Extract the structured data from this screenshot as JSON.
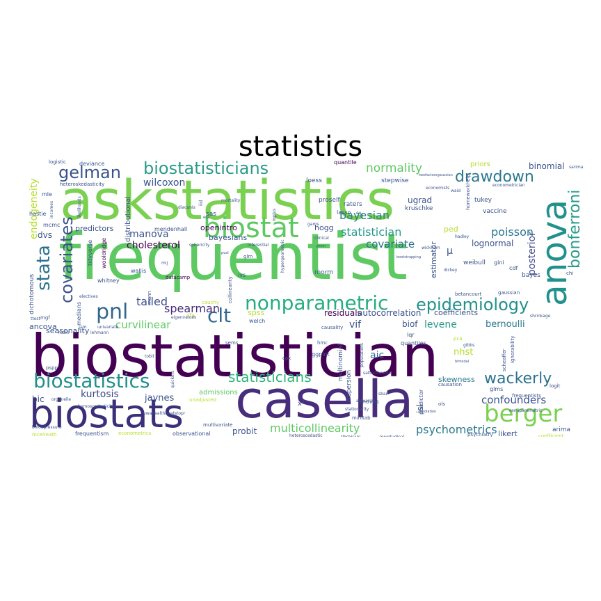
{
  "title": "statistics",
  "words": {
    "biostatistician": "biostatistician",
    "frequentist": "frequentist",
    "askstatistics": "askstatistics",
    "casella": "casella",
    "biostats": "biostats",
    "anova": "anova",
    "biostat": "biostat",
    "biostatistics": "biostatistics",
    "nonparametric": "nonparametric",
    "biostatisticians": "biostatisticians",
    "berger": "berger",
    "epidemiology": "epidemiology",
    "gelman": "gelman",
    "pnl": "pnl",
    "clt": "clt",
    "covariates": "covariates",
    "stata": "stata",
    "bonferroni": "bonferroni",
    "drawdown": "drawdown",
    "wackerly": "wackerly",
    "statisticians": "statisticians",
    "normality": "normality",
    "multicollinearity": "multicollinearity",
    "statistician": "statistician",
    "bayesian": "bayesian",
    "poisson": "poisson",
    "covariate": "covariate",
    "confounders": "confounders",
    "psychometrics": "psychometrics",
    "spearman": "spearman",
    "tailed": "tailed",
    "kurtosis": "kurtosis",
    "curvilinear": "curvilinear",
    "cholesterol": "cholesterol",
    "manova": "manova",
    "wilcoxon": "wilcoxon",
    "levene": "levene",
    "vif": "vif",
    "bernoulli": "bernoulli",
    "endogeneity": "endogeneity",
    "posterior": "posterior",
    "aic": "aic",
    "jaynes": "jaynes",
    "bic": "bic",
    "skewness": "skewness",
    "likert": "likert",
    "nhst": "nhst",
    "binomial": "binomial",
    "bayesians": "bayesians",
    "predictors": "predictors",
    "logistic": "logistic",
    "deviance": "deviance",
    "quantile": "quantile",
    "priors": "priors",
    "residuals": "residuals",
    "autocorrelation": "autocorrelation",
    "coefficients": "coefficients",
    "probit": "probit",
    "arima": "arima",
    "lognormal": "lognormal",
    "estimator": "estimator",
    "mu": "μ",
    "seasonality": "seasonality",
    "admissions": "admissions",
    "isl": "isl",
    "spss": "spss",
    "hogg": "hogg",
    "ugrad": "ugrad",
    "openintro": "openintro",
    "mendenhall": "mendenhall",
    "ped": "ped",
    "biof": "biof",
    "dvs": "dvs",
    "ancova": "ancova",
    "distributional": "distributional",
    "kruschke": "kruschke",
    "proself": "proself",
    "lasso": "lasso",
    "tukey": "tukey",
    "vaccine": "vaccine",
    "raters": "raters",
    "loess": "loess",
    "stepwise": "stepwise",
    "sas": "sas",
    "mle": "mle",
    "hastie": "hastie",
    "mcmc": "mcmc",
    "weibull": "weibull",
    "gini": "gini",
    "cdf": "cdf",
    "bayes": "bayes",
    "rnorm": "rnorm",
    "glm": "glm",
    "ivs": "ivs",
    "wallis": "wallis",
    "whitney": "whitney",
    "datacamp": "datacamp",
    "cauchy": "cauchy",
    "cfa": "cfa",
    "welch": "welch",
    "causality": "causality",
    "hmc": "hmc",
    "lqr": "lqr",
    "quantiles": "quantiles",
    "pca": "pca",
    "ggplot": "ggplot",
    "sems": "sems",
    "cpk": "cpk",
    "multinomial": "multinomial",
    "dispersion": "dispersion",
    "predictor": "predictor",
    "anovas": "anovas",
    "causation": "causation",
    "glms": "glms",
    "logit": "logit",
    "frequentists": "frequentists",
    "ols": "ols",
    "minitab": "minitab",
    "medians": "medians",
    "tidyverse": "tidyverse",
    "wooldridge": "wooldridge",
    "dichotomous": "dichotomous",
    "frequentism": "frequentism",
    "econometrics": "econometrics",
    "observational": "observational",
    "multivariate": "multivariate",
    "mcelreath": "mcelreath",
    "xsq": "x²",
    "coefficient": "coefficient",
    "psychiatry": "psychiatry",
    "stationarity": "stationarity",
    "heteroskedasticity": "heteroskedasticity",
    "heteroscedastic": "heteroscedastic",
    "unadjusted": "unadjusted",
    "semiparametric": "semiparametric",
    "satterthwaite": "satterthwaite",
    "tibshirani": "tibshirani",
    "betancourt": "betancourt",
    "gaussian": "gaussian",
    "chi": "chi",
    "mgf": "mgf",
    "iid": "iid",
    "mortality": "mortality",
    "inferential": "inferential",
    "sphericity": "sphericity",
    "diaconis": "diaconis",
    "economists": "economists",
    "waid": "waid",
    "hadley": "hadley",
    "wickham": "wickham",
    "dickey": "dickey",
    "mann": "mann",
    "gams": "gams",
    "mij": "mij",
    "jsm": "jsm",
    "pspp": "pspp",
    "organelle": "organelle",
    "eigenvalues": "eigenvalues",
    "scheaffer": "scheaffer",
    "ignorability": "ignorability",
    "shrinkage": "shrinkage",
    "homeworkhelp": "homeworkhelp",
    "econometrician": "econometrician",
    "sarima": "sarima",
    "likelihoods": "likelihoods",
    "incomes": "incomes",
    "rudin": "rudin",
    "lehmann": "lehmann",
    "populations": "populations",
    "tobit": "tobit",
    "univariate": "univariate",
    "actuarial": "actuarial",
    "homoscedasticity": "homoscedasticity",
    "longitudinal": "longitudinal",
    "eta": "eta",
    "mplus": "mplus",
    "clinical": "clinical",
    "collinearity": "collinearity",
    "hypergeometric": "hypergeometric",
    "electives": "electives",
    "spline": "spline",
    "bloodpressure": "bloodpressure",
    "uwahealthbeatstopr": "uwahealthbeatstopr",
    "gibbs": "gibbs",
    "sbar": "sbar",
    "ttest": "ttest",
    "twofactorxgaussian": "twofactorxgaussian",
    "heterogeneity": "heterogeneity",
    "bimodal": "bimodal",
    "eu": "eu",
    "glmm": "glmm",
    "bootstrapping": "bootstrapping",
    "pval": "pval",
    "mediation": "mediation",
    "quickers": "quickers"
  },
  "palette": {
    "dark": "#440154",
    "indigo": "#3b528b",
    "teal": "#21918c",
    "green": "#5ec962",
    "lime": "#b5de2b",
    "yellow": "#fde725",
    "navy": "#3e4989",
    "cyan": "#26828e"
  }
}
